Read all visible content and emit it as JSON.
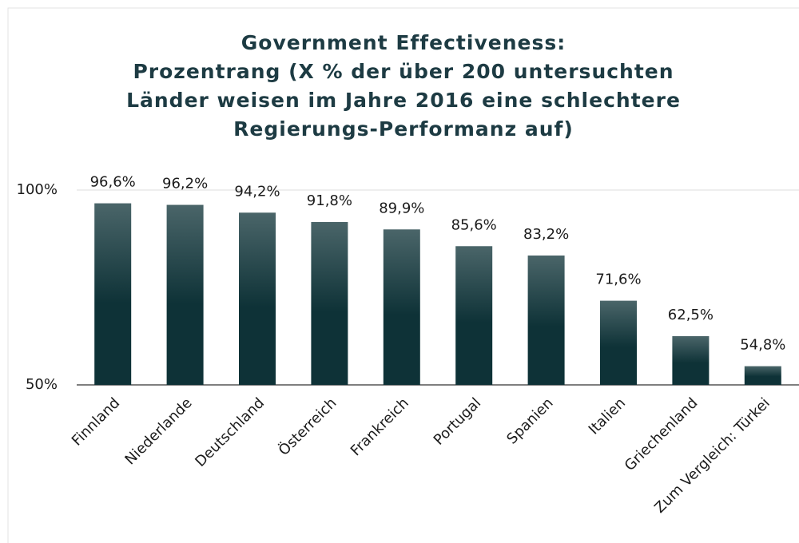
{
  "chart_data": {
    "type": "bar",
    "title": [
      "Government Effectiveness:",
      "Prozentrang (X % der über 200 untersuchten",
      "Länder weisen im Jahre 2016 eine schlechtere",
      "Regierungs-Performanz auf)"
    ],
    "categories": [
      "Finnland",
      "Niederlande",
      "Deutschland",
      "Österreich",
      "Frankreich",
      "Portugal",
      "Spanien",
      "Italien",
      "Griechenland",
      "Zum Vergleich: Türkei"
    ],
    "values": [
      96.6,
      96.2,
      94.2,
      91.8,
      89.9,
      85.6,
      83.2,
      71.6,
      62.5,
      54.8
    ],
    "value_labels": [
      "96,6%",
      "96,2%",
      "94,2%",
      "91,8%",
      "89,9%",
      "85,6%",
      "83,2%",
      "71,6%",
      "62,5%",
      "54,8%"
    ],
    "color": "#0e3237",
    "ylim": [
      50,
      100
    ],
    "yticks": [
      {
        "value": 50,
        "label": "50%"
      },
      {
        "value": 100,
        "label": "100%"
      }
    ],
    "grid": true
  }
}
